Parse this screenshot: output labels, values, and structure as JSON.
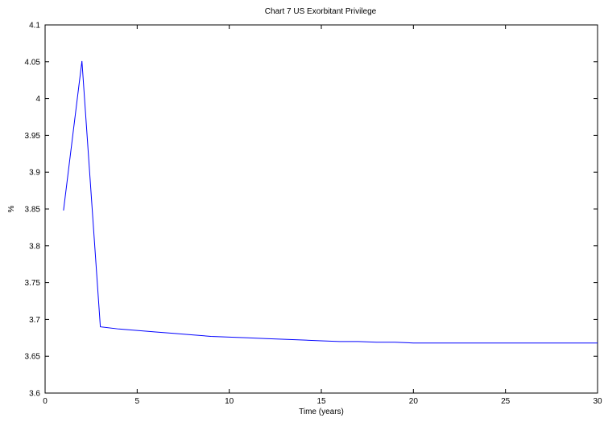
{
  "chart_data": {
    "type": "line",
    "title": "Chart 7 US Exorbitant Privilege",
    "xlabel": "Time (years)",
    "ylabel": "%",
    "xlim": [
      0,
      30
    ],
    "ylim": [
      3.6,
      4.1
    ],
    "xticks": [
      0,
      5,
      10,
      15,
      20,
      25,
      30
    ],
    "yticks": [
      3.6,
      3.65,
      3.7,
      3.75,
      3.8,
      3.85,
      3.9,
      3.95,
      4,
      4.05,
      4.1
    ],
    "ytick_labels": [
      "3.6",
      "3.65",
      "3.7",
      "3.75",
      "3.8",
      "3.85",
      "3.9",
      "3.95",
      "4",
      "4.05",
      "4.1"
    ],
    "grid": false,
    "series": [
      {
        "color": "#0000ff",
        "x": [
          1,
          2,
          3,
          4,
          5,
          6,
          7,
          8,
          9,
          10,
          11,
          12,
          13,
          14,
          15,
          16,
          17,
          18,
          19,
          20,
          21,
          22,
          23,
          24,
          25,
          26,
          27,
          28,
          29,
          30
        ],
        "y": [
          3.848,
          4.051,
          3.69,
          3.687,
          3.685,
          3.683,
          3.681,
          3.679,
          3.677,
          3.676,
          3.675,
          3.674,
          3.673,
          3.672,
          3.671,
          3.67,
          3.67,
          3.669,
          3.669,
          3.668,
          3.668,
          3.668,
          3.668,
          3.668,
          3.668,
          3.668,
          3.668,
          3.668,
          3.668,
          3.668
        ]
      }
    ]
  }
}
